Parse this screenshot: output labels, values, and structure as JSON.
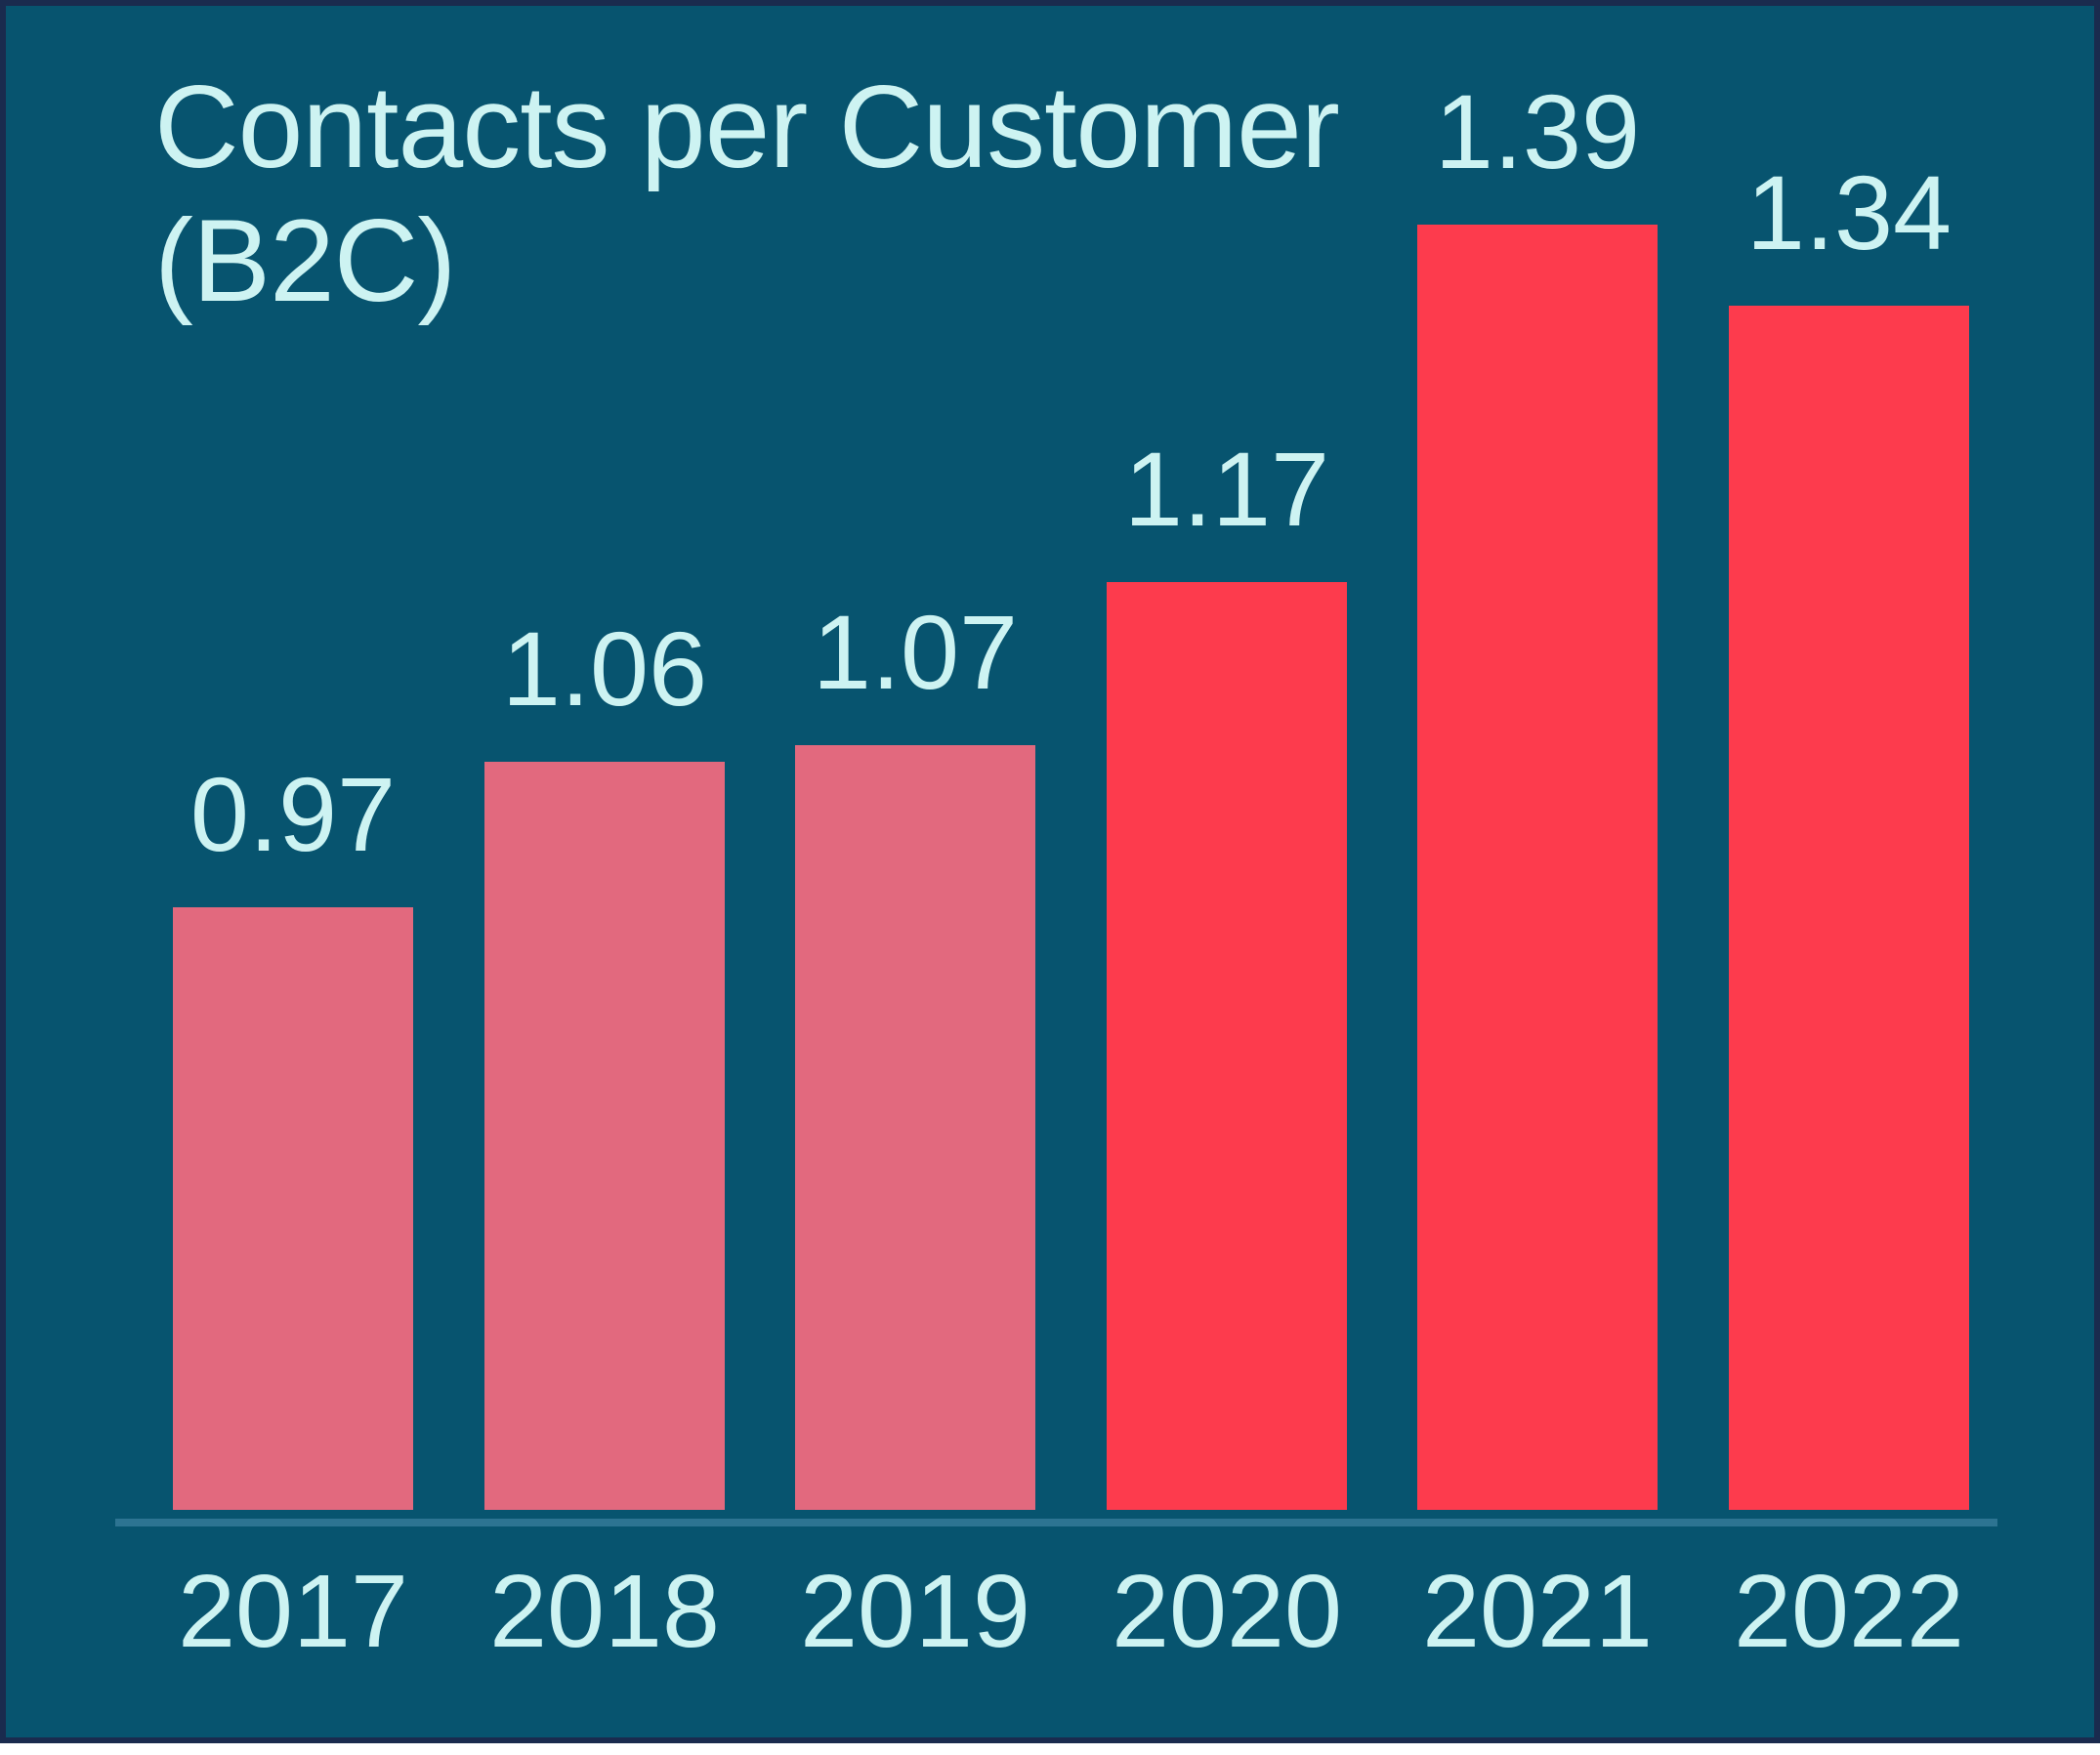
{
  "chart_data": {
    "type": "bar",
    "title": "Contacts per Customer\n(B2C)",
    "categories": [
      "2017",
      "2018",
      "2019",
      "2020",
      "2021",
      "2022"
    ],
    "values": [
      0.97,
      1.06,
      1.07,
      1.17,
      1.39,
      1.34
    ],
    "data_labels": [
      "0.97",
      "1.06",
      "1.07",
      "1.17",
      "1.39",
      "1.34"
    ],
    "bar_colors": [
      "#E2697E",
      "#E2697E",
      "#E2697E",
      "#FD3B4D",
      "#FD3B4D",
      "#FD3B4D"
    ],
    "xlabel": "",
    "ylabel": "",
    "ylim": [
      0.6,
      1.49
    ],
    "grid": false,
    "legend": false,
    "y_axis_visible": false,
    "colors": {
      "background": "#07546F",
      "frame_border": "#1A2B4E",
      "label_text": "#CDF3F2",
      "axis_line": "#2D7492"
    }
  }
}
